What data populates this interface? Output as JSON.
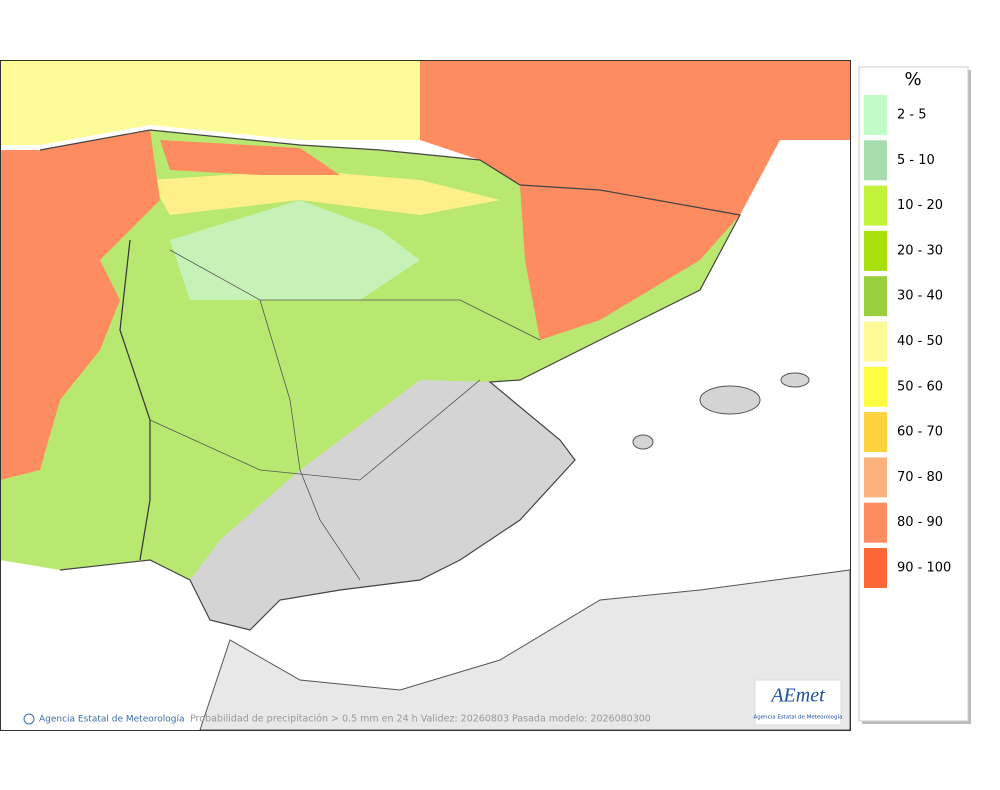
{
  "legend": {
    "title": "%",
    "items": [
      {
        "label": "2 - 5",
        "color": "#c2fcc8"
      },
      {
        "label": "5 - 10",
        "color": "#a6dcae"
      },
      {
        "label": "10 - 20",
        "color": "#c2f23a"
      },
      {
        "label": "20 - 30",
        "color": "#a8e00c"
      },
      {
        "label": "30 - 40",
        "color": "#9ccf3e"
      },
      {
        "label": "40 - 50",
        "color": "#fdfa98"
      },
      {
        "label": "50 - 60",
        "color": "#fdfc42"
      },
      {
        "label": "60 - 70",
        "color": "#fdd23e"
      },
      {
        "label": "70 - 80",
        "color": "#fdb27e"
      },
      {
        "label": "80 - 90",
        "color": "#fd8c60"
      },
      {
        "label": "90 - 100",
        "color": "#fd6636"
      }
    ]
  },
  "footer": {
    "credit": "Agencia Estatal de Meteorología",
    "caption": "Probabilidad de precipitación > 0.5 mm en 24 h Validez: 20260803 Pasada modelo: 2026080300",
    "logo": "AEmet",
    "logo_subtitle": "Agencia Estatal de Meteorología"
  }
}
